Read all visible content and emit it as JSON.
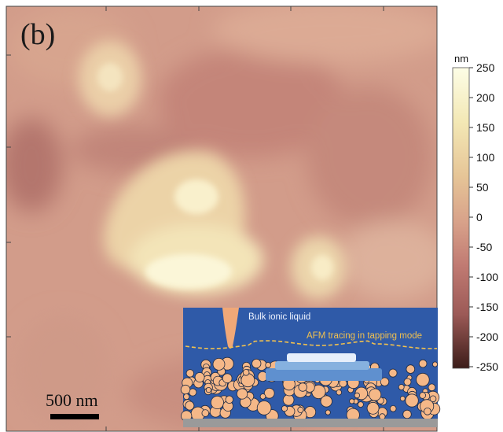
{
  "panel_label": "(b)",
  "scale_bar": {
    "label": "500 nm"
  },
  "colorbar": {
    "unit": "nm",
    "ticks": [
      "250",
      "200",
      "150",
      "100",
      "50",
      "0",
      "-50",
      "-100",
      "-150",
      "-200",
      "-250"
    ],
    "colors": [
      "#fdfde3",
      "#f3e8b5",
      "#e8c99a",
      "#d9a48a",
      "#c07a72",
      "#9c5a57",
      "#4a2620"
    ]
  },
  "inset": {
    "line1": "Bulk ionic liquid",
    "line2": "AFM tracing in tapping mode",
    "colors": {
      "background": "#2f5aa8",
      "particle": "#f5b888",
      "tip": "#f0a878",
      "trace": "#f2c14e",
      "substrate": "#9a9a9a"
    }
  }
}
